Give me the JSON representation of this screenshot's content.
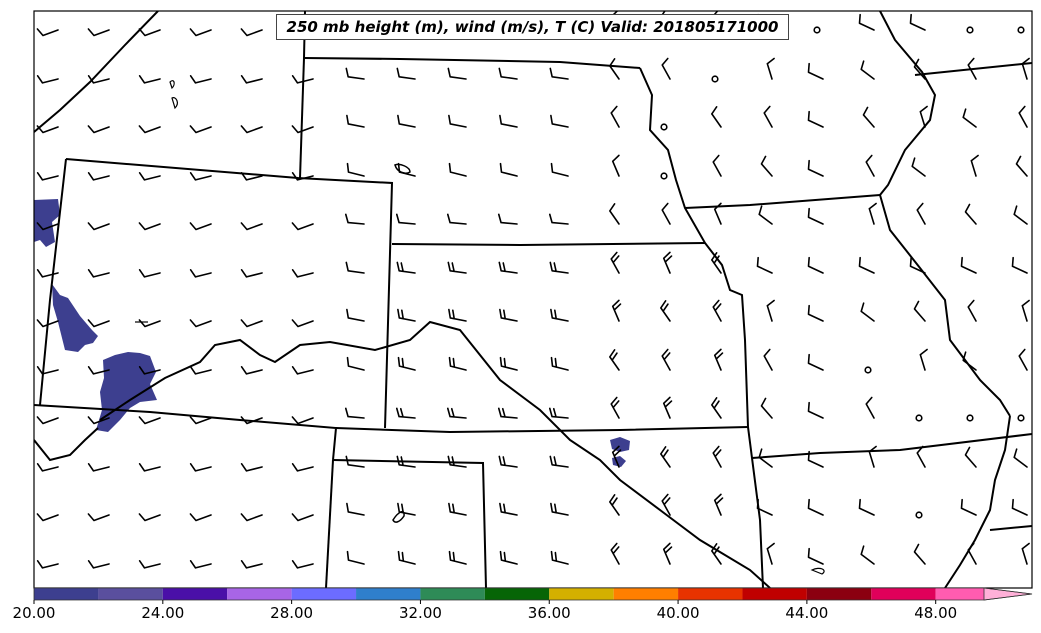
{
  "title": "250 mb height (m), wind (m/s), T (C) Valid: 201805171000",
  "colorbar": {
    "colors": [
      "#3d3f8f",
      "#5a4f9e",
      "#4a0fa8",
      "#a865e6",
      "#6c6cff",
      "#2f7fcc",
      "#2e8b57",
      "#066506",
      "#d4b000",
      "#ff7f00",
      "#e83300",
      "#c00000",
      "#8b0010",
      "#e0005a",
      "#ff5cb0",
      "#ffb0d8"
    ],
    "ticks": [
      {
        "value": 20,
        "label": "20.00"
      },
      {
        "value": 24,
        "label": "24.00"
      },
      {
        "value": 28,
        "label": "28.00"
      },
      {
        "value": 32,
        "label": "32.00"
      },
      {
        "value": 36,
        "label": "36.00"
      },
      {
        "value": 40,
        "label": "40.00"
      },
      {
        "value": 44,
        "label": "44.00"
      },
      {
        "value": 48,
        "label": "48.00"
      }
    ],
    "min": 20,
    "max": 51.5
  },
  "fill_color": "#3d3f8f"
}
